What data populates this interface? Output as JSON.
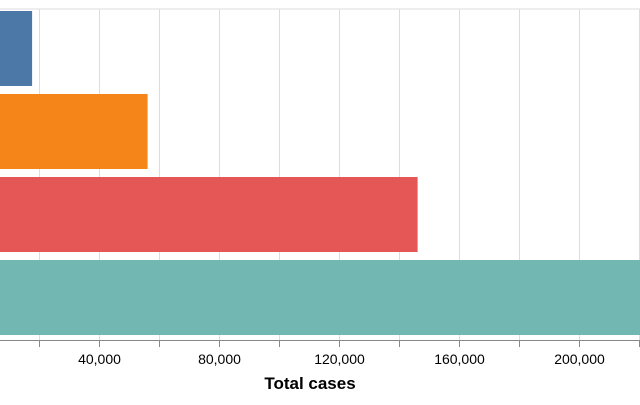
{
  "chart_data": {
    "type": "bar",
    "orientation": "horizontal",
    "categories": [
      "",
      "",
      "",
      ""
    ],
    "values": [
      17700,
      56200,
      146200,
      238000
    ],
    "colors": [
      "#4c78a8",
      "#f58518",
      "#e45756",
      "#72b7b2"
    ],
    "xlabel": "Total cases",
    "ylabel": "",
    "xlim": [
      0,
      240000
    ],
    "x_ticks": [
      {
        "value": 20000,
        "label": ""
      },
      {
        "value": 40000,
        "label": "40,000"
      },
      {
        "value": 60000,
        "label": ""
      },
      {
        "value": 80000,
        "label": "80,000"
      },
      {
        "value": 100000,
        "label": ""
      },
      {
        "value": 120000,
        "label": "120,000"
      },
      {
        "value": 140000,
        "label": ""
      },
      {
        "value": 160000,
        "label": "160,000"
      },
      {
        "value": 180000,
        "label": ""
      },
      {
        "value": 200000,
        "label": "200,000"
      },
      {
        "value": 220000,
        "label": ""
      }
    ],
    "grid": true,
    "legend": "none"
  }
}
